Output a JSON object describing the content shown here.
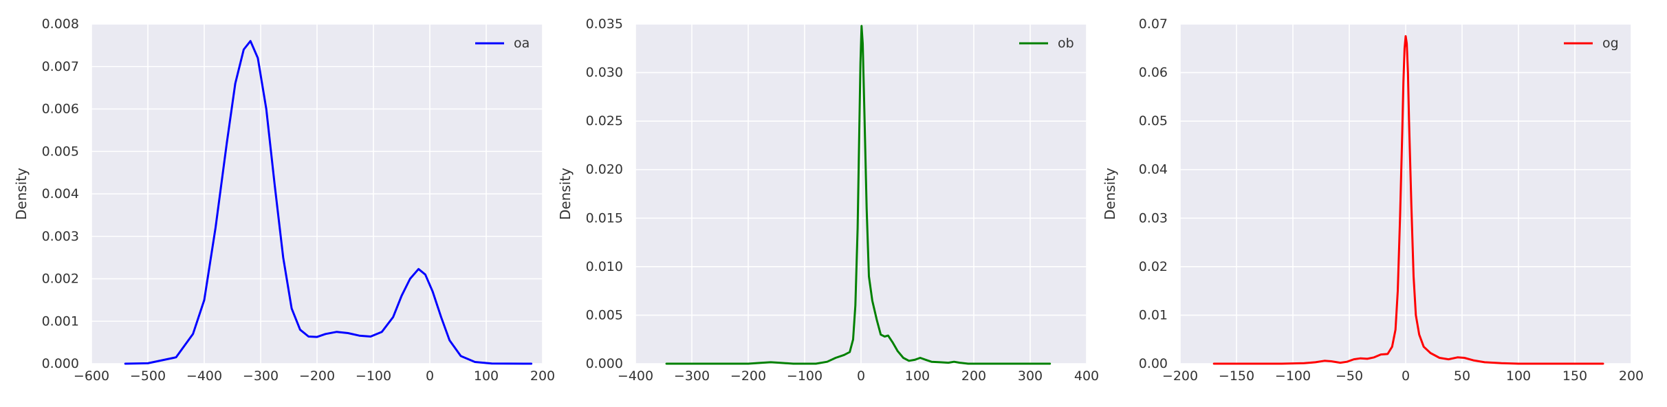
{
  "chart_data": [
    {
      "type": "line",
      "ylabel": "Density",
      "xlim": [
        -600,
        200
      ],
      "ylim": [
        0,
        0.008
      ],
      "xticks": [
        "−600",
        "−500",
        "−400",
        "−300",
        "−200",
        "−100",
        "0",
        "100",
        "200"
      ],
      "yticks": [
        "0.000",
        "0.001",
        "0.002",
        "0.003",
        "0.004",
        "0.005",
        "0.006",
        "0.007",
        "0.008"
      ],
      "grid": true,
      "legend": "top-right",
      "series": [
        {
          "name": "oa",
          "color": "#0000ff",
          "points": [
            [
              -540,
              0
            ],
            [
              -500,
              1e-05
            ],
            [
              -450,
              0.00015
            ],
            [
              -420,
              0.0007
            ],
            [
              -400,
              0.0015
            ],
            [
              -380,
              0.0032
            ],
            [
              -360,
              0.0052
            ],
            [
              -345,
              0.0066
            ],
            [
              -330,
              0.0074
            ],
            [
              -318,
              0.0076
            ],
            [
              -305,
              0.0072
            ],
            [
              -290,
              0.006
            ],
            [
              -275,
              0.0042
            ],
            [
              -260,
              0.0025
            ],
            [
              -245,
              0.0013
            ],
            [
              -230,
              0.0008
            ],
            [
              -215,
              0.00064
            ],
            [
              -200,
              0.00063
            ],
            [
              -185,
              0.0007
            ],
            [
              -165,
              0.00075
            ],
            [
              -145,
              0.00072
            ],
            [
              -125,
              0.00066
            ],
            [
              -105,
              0.00064
            ],
            [
              -85,
              0.00075
            ],
            [
              -65,
              0.0011
            ],
            [
              -50,
              0.0016
            ],
            [
              -35,
              0.002
            ],
            [
              -20,
              0.00223
            ],
            [
              -8,
              0.0021
            ],
            [
              5,
              0.0017
            ],
            [
              20,
              0.0011
            ],
            [
              35,
              0.00055
            ],
            [
              55,
              0.00018
            ],
            [
              80,
              4e-05
            ],
            [
              110,
              5e-06
            ],
            [
              180,
              0
            ]
          ]
        }
      ]
    },
    {
      "type": "line",
      "ylabel": "Density",
      "xlim": [
        -400,
        400
      ],
      "ylim": [
        0,
        0.035
      ],
      "xticks": [
        "−400",
        "−300",
        "−200",
        "−100",
        "0",
        "100",
        "200",
        "300",
        "400"
      ],
      "yticks": [
        "0.000",
        "0.005",
        "0.010",
        "0.015",
        "0.020",
        "0.025",
        "0.030",
        "0.035"
      ],
      "grid": true,
      "legend": "top-right",
      "series": [
        {
          "name": "ob",
          "color": "#008000",
          "points": [
            [
              -345,
              0
            ],
            [
              -200,
              0
            ],
            [
              -175,
              0.0001
            ],
            [
              -160,
              0.00015
            ],
            [
              -145,
              0.0001
            ],
            [
              -120,
              0
            ],
            [
              -80,
              0
            ],
            [
              -60,
              0.0002
            ],
            [
              -45,
              0.0006
            ],
            [
              -30,
              0.0009
            ],
            [
              -20,
              0.0012
            ],
            [
              -14,
              0.0025
            ],
            [
              -10,
              0.006
            ],
            [
              -6,
              0.014
            ],
            [
              -3,
              0.024
            ],
            [
              -1,
              0.031
            ],
            [
              1,
              0.0348
            ],
            [
              3,
              0.033
            ],
            [
              6,
              0.026
            ],
            [
              10,
              0.016
            ],
            [
              14,
              0.009
            ],
            [
              20,
              0.0065
            ],
            [
              28,
              0.0045
            ],
            [
              35,
              0.003
            ],
            [
              42,
              0.0028
            ],
            [
              48,
              0.0029
            ],
            [
              56,
              0.0022
            ],
            [
              65,
              0.0013
            ],
            [
              75,
              0.0006
            ],
            [
              85,
              0.0003
            ],
            [
              95,
              0.0004
            ],
            [
              105,
              0.0006
            ],
            [
              115,
              0.0004
            ],
            [
              125,
              0.0002
            ],
            [
              140,
              0.00015
            ],
            [
              155,
              0.0001
            ],
            [
              165,
              0.0002
            ],
            [
              175,
              0.0001
            ],
            [
              190,
              0
            ],
            [
              335,
              0
            ]
          ]
        }
      ]
    },
    {
      "type": "line",
      "ylabel": "Density",
      "xlim": [
        -200,
        200
      ],
      "ylim": [
        0,
        0.07
      ],
      "xticks": [
        "−200",
        "−150",
        "−100",
        "−50",
        "0",
        "50",
        "100",
        "150",
        "200"
      ],
      "yticks": [
        "0.00",
        "0.01",
        "0.02",
        "0.03",
        "0.04",
        "0.05",
        "0.06",
        "0.07"
      ],
      "grid": true,
      "legend": "top-right",
      "series": [
        {
          "name": "og",
          "color": "#ff0000",
          "points": [
            [
              -170,
              0
            ],
            [
              -110,
              0
            ],
            [
              -90,
              0.0001
            ],
            [
              -80,
              0.0003
            ],
            [
              -72,
              0.0006
            ],
            [
              -66,
              0.0005
            ],
            [
              -58,
              0.0002
            ],
            [
              -52,
              0.0004
            ],
            [
              -46,
              0.0009
            ],
            [
              -40,
              0.0011
            ],
            [
              -34,
              0.001
            ],
            [
              -28,
              0.0013
            ],
            [
              -22,
              0.0019
            ],
            [
              -16,
              0.002
            ],
            [
              -12,
              0.0035
            ],
            [
              -9,
              0.007
            ],
            [
              -7,
              0.015
            ],
            [
              -5,
              0.03
            ],
            [
              -3,
              0.048
            ],
            [
              -2,
              0.058
            ],
            [
              -1,
              0.065
            ],
            [
              0,
              0.0675
            ],
            [
              1,
              0.066
            ],
            [
              2,
              0.06
            ],
            [
              3,
              0.05
            ],
            [
              5,
              0.033
            ],
            [
              7,
              0.018
            ],
            [
              9,
              0.01
            ],
            [
              12,
              0.006
            ],
            [
              16,
              0.0035
            ],
            [
              22,
              0.0022
            ],
            [
              30,
              0.0012
            ],
            [
              38,
              0.0009
            ],
            [
              46,
              0.0013
            ],
            [
              52,
              0.0012
            ],
            [
              60,
              0.0007
            ],
            [
              70,
              0.0003
            ],
            [
              85,
              0.0001
            ],
            [
              100,
              0
            ],
            [
              175,
              0
            ]
          ]
        }
      ]
    }
  ]
}
